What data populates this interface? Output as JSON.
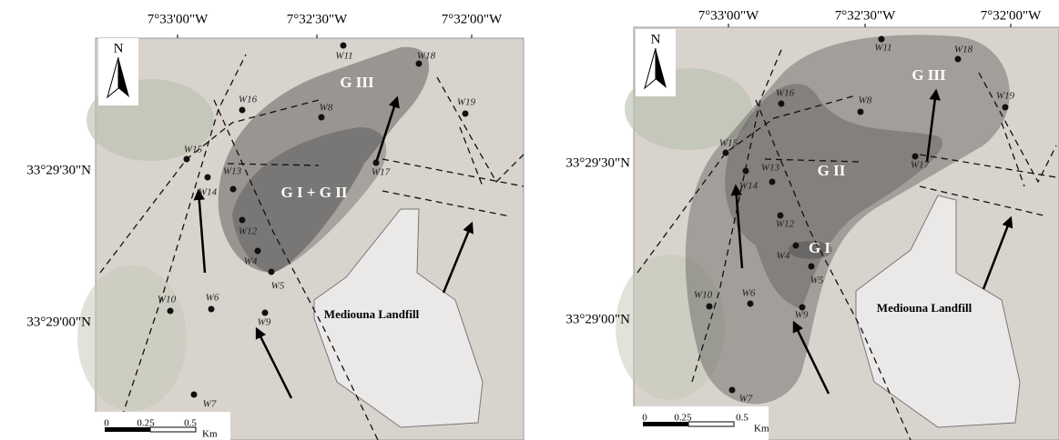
{
  "panels": [
    {
      "longitudes": [
        "7°33'00\"W",
        "7°32'30\"W",
        "7°32'00\"W"
      ],
      "latitudes": [
        "33°29'30\"N",
        "33°29'00\"N"
      ],
      "wells": [
        "W11",
        "W18",
        "W16",
        "W8",
        "W19",
        "W15",
        "W17",
        "W13",
        "W14",
        "W12",
        "W4",
        "W5",
        "W10",
        "W6",
        "W9",
        "W7"
      ],
      "groups": [
        "G III",
        "G I + G II"
      ],
      "landfill": "Mediouna Landfill",
      "north": "N",
      "scale": [
        "0",
        "0.25",
        "0.5",
        "Km"
      ]
    },
    {
      "longitudes": [
        "7°33'00\"W",
        "7°32'30\"W",
        "7°32'00\"W"
      ],
      "latitudes": [
        "33°29'30\"N",
        "33°29'00\"N"
      ],
      "wells": [
        "W11",
        "W18",
        "W16",
        "W8",
        "W19",
        "W15",
        "W17",
        "W13",
        "W14",
        "W12",
        "W4",
        "W5",
        "W10",
        "W6",
        "W9",
        "W7"
      ],
      "groups": [
        "G III",
        "G II",
        "G I"
      ],
      "landfill": "Mediouna Landfill",
      "north": "N",
      "scale": [
        "0",
        "0.25",
        "0.5",
        "Km"
      ]
    }
  ]
}
